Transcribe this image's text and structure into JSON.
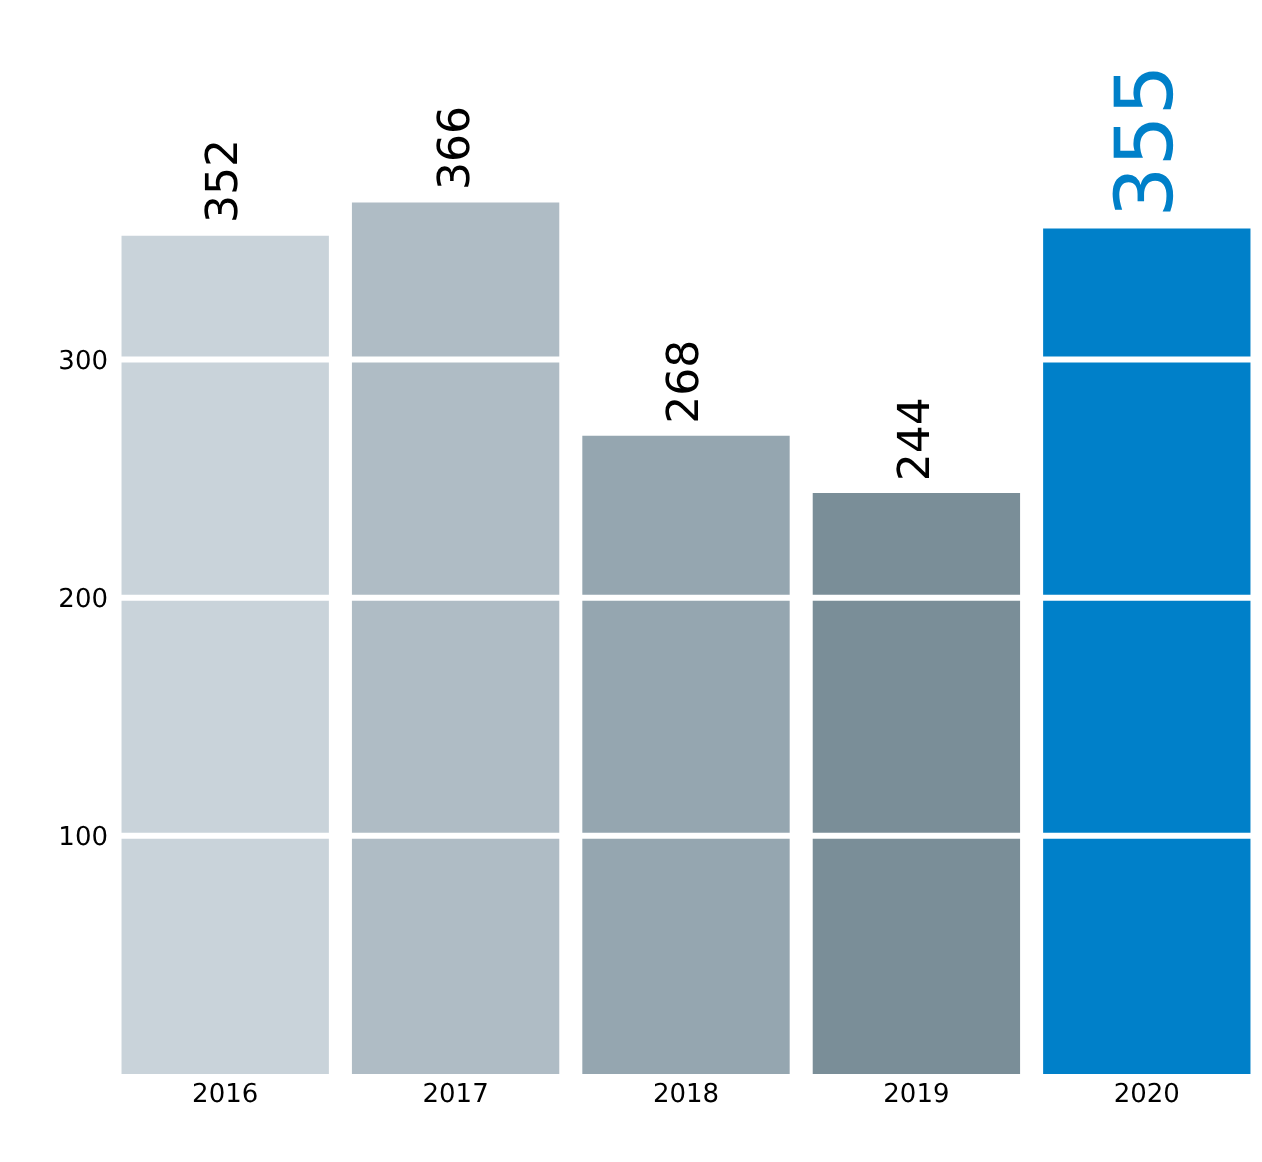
{
  "chart_data": {
    "type": "bar",
    "categories": [
      "2016",
      "2017",
      "2018",
      "2019",
      "2020"
    ],
    "values": [
      352,
      366,
      268,
      244,
      355
    ],
    "colors": [
      "#c9d3da",
      "#afbcc5",
      "#95a6b0",
      "#7a8e98",
      "#0080c9"
    ],
    "ylim": [
      0,
      451
    ],
    "yticks": [
      100,
      200,
      300
    ],
    "grid": "y",
    "data_labels": true,
    "legend": false
  }
}
